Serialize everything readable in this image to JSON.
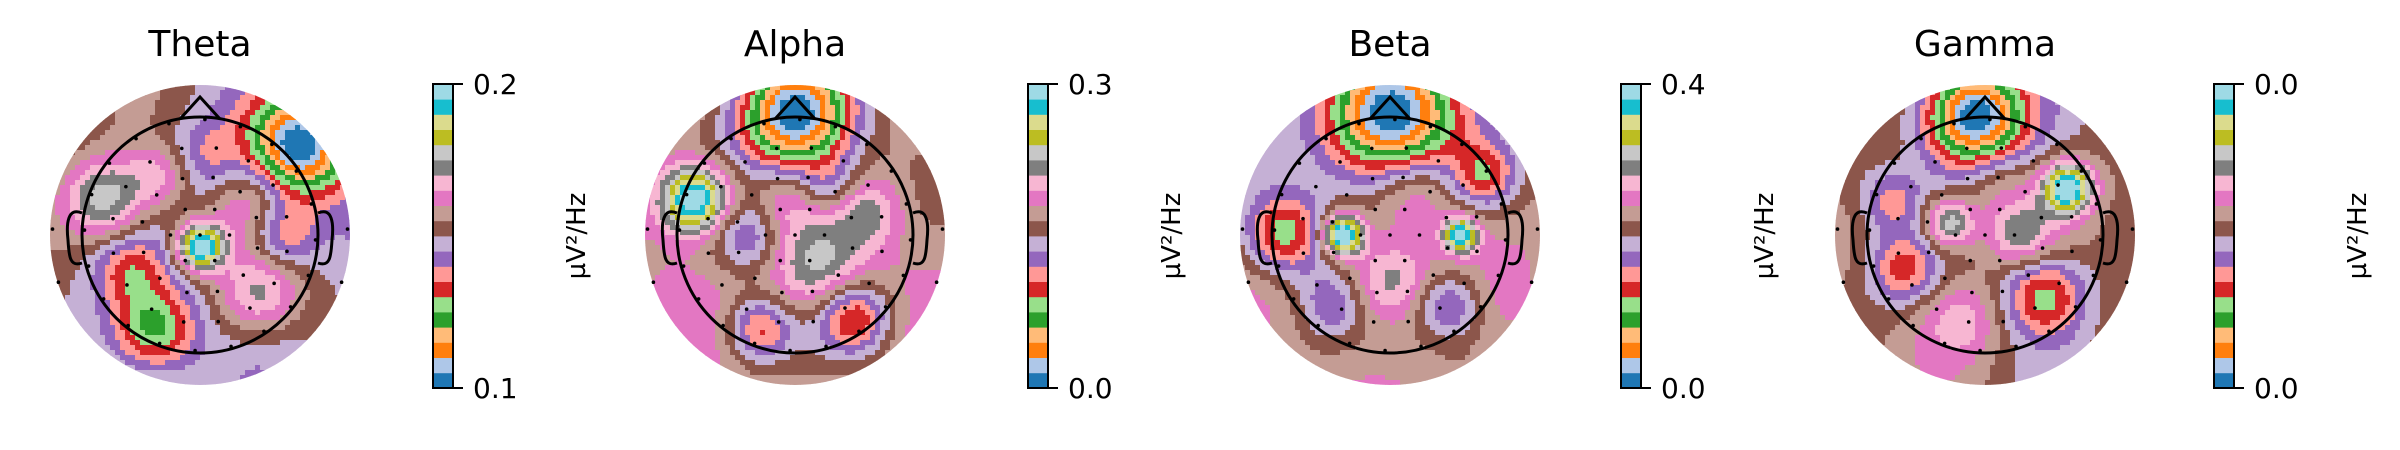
{
  "palette": [
    "#1f77b4",
    "#aec7e8",
    "#ff7f0e",
    "#ffbb78",
    "#2ca02c",
    "#98df8a",
    "#d62728",
    "#ff9896",
    "#9467bd",
    "#c5b0d5",
    "#8c564b",
    "#c49c94",
    "#e377c2",
    "#f7b6d2",
    "#7f7f7f",
    "#c7c7c7",
    "#bcbd22",
    "#dbdb8d",
    "#17becf",
    "#9edae5"
  ],
  "chart_data": [
    {
      "type": "heatmap",
      "title": "Theta",
      "colorbar_label": "µV²/Hz",
      "colorbar_ticks": [
        "0.2",
        "0.1"
      ],
      "blobs": [
        {
          "x": 0.85,
          "y": 0.75,
          "r": 0.3,
          "w": -5.0
        },
        {
          "x": -0.8,
          "y": 0.3,
          "r": 0.25,
          "w": 3.0
        },
        {
          "x": 0.0,
          "y": -0.1,
          "r": 0.14,
          "w": 5.0
        },
        {
          "x": -0.4,
          "y": -0.8,
          "r": 0.25,
          "w": -3.0
        },
        {
          "x": 0.5,
          "y": -0.5,
          "r": 0.25,
          "w": 2.0
        },
        {
          "x": -0.3,
          "y": 0.5,
          "r": 0.2,
          "w": 2.0
        },
        {
          "x": 0.4,
          "y": 0.3,
          "r": 0.25,
          "w": 1.5
        },
        {
          "x": 0.7,
          "y": 0.0,
          "r": 0.2,
          "w": -2.0
        },
        {
          "x": -0.6,
          "y": -0.3,
          "r": 0.2,
          "w": -1.5
        },
        {
          "x": 0.0,
          "y": 0.6,
          "r": 0.25,
          "w": -1.5
        }
      ]
    },
    {
      "type": "heatmap",
      "title": "Alpha",
      "colorbar_label": "µV²/Hz",
      "colorbar_ticks": [
        "0.3",
        "0.0"
      ],
      "blobs": [
        {
          "x": 0.0,
          "y": 1.0,
          "r": 0.35,
          "w": -6.0
        },
        {
          "x": -0.85,
          "y": 0.3,
          "r": 0.2,
          "w": 5.0
        },
        {
          "x": -0.4,
          "y": 0.0,
          "r": 0.22,
          "w": -2.0
        },
        {
          "x": 0.2,
          "y": -0.3,
          "r": 0.28,
          "w": 2.0
        },
        {
          "x": 0.6,
          "y": 0.2,
          "r": 0.2,
          "w": 1.5
        },
        {
          "x": 0.5,
          "y": -0.7,
          "r": 0.22,
          "w": -3.0
        },
        {
          "x": -0.3,
          "y": -0.8,
          "r": 0.2,
          "w": -2.5
        },
        {
          "x": 0.3,
          "y": 0.4,
          "r": 0.18,
          "w": -1.5
        },
        {
          "x": -0.1,
          "y": 0.3,
          "r": 0.22,
          "w": 1.0
        }
      ]
    },
    {
      "type": "heatmap",
      "title": "Beta",
      "colorbar_label": "µV²/Hz",
      "colorbar_ticks": [
        "0.4",
        "0.0"
      ],
      "blobs": [
        {
          "x": 0.0,
          "y": 1.0,
          "r": 0.4,
          "w": -6.0
        },
        {
          "x": -0.4,
          "y": 0.0,
          "r": 0.12,
          "w": 5.0
        },
        {
          "x": 0.6,
          "y": 0.0,
          "r": 0.1,
          "w": 4.0
        },
        {
          "x": -0.9,
          "y": 0.0,
          "r": 0.25,
          "w": -3.0
        },
        {
          "x": 0.0,
          "y": -0.4,
          "r": 0.25,
          "w": 2.0
        },
        {
          "x": 0.5,
          "y": -0.6,
          "r": 0.2,
          "w": -2.0
        },
        {
          "x": -0.5,
          "y": -0.6,
          "r": 0.2,
          "w": -1.5
        },
        {
          "x": 0.2,
          "y": 0.4,
          "r": 0.25,
          "w": 1.5
        },
        {
          "x": 0.8,
          "y": 0.5,
          "r": 0.18,
          "w": -2.0
        }
      ]
    },
    {
      "type": "heatmap",
      "title": "Gamma",
      "colorbar_label": "µV²/Hz",
      "colorbar_ticks": [
        "0.0",
        "0.0"
      ],
      "blobs": [
        {
          "x": -0.1,
          "y": 1.0,
          "r": 0.3,
          "w": -6.0
        },
        {
          "x": 0.7,
          "y": 0.4,
          "r": 0.15,
          "w": 5.0
        },
        {
          "x": -0.3,
          "y": 0.1,
          "r": 0.15,
          "w": 3.0
        },
        {
          "x": 0.3,
          "y": 0.0,
          "r": 0.2,
          "w": 2.0
        },
        {
          "x": -0.7,
          "y": -0.3,
          "r": 0.2,
          "w": -2.0
        },
        {
          "x": 0.5,
          "y": -0.5,
          "r": 0.25,
          "w": -3.0
        },
        {
          "x": -0.2,
          "y": -0.7,
          "r": 0.25,
          "w": 1.5
        },
        {
          "x": -0.8,
          "y": 0.3,
          "r": 0.18,
          "w": -1.5
        },
        {
          "x": 0.1,
          "y": 0.5,
          "r": 0.2,
          "w": 1.0
        }
      ]
    }
  ]
}
